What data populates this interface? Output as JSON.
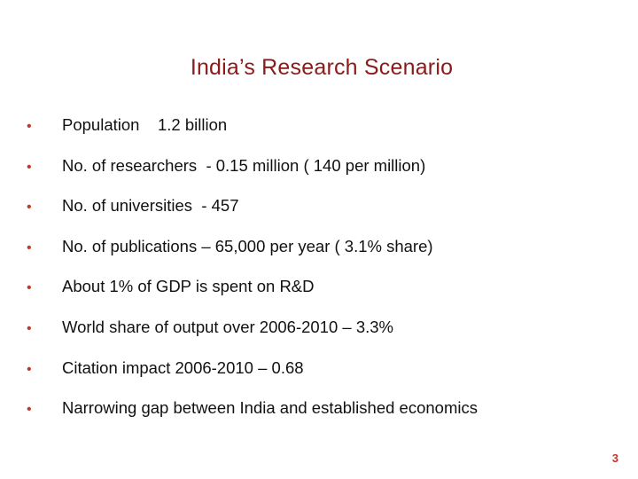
{
  "slide": {
    "title": "India’s Research Scenario",
    "bullets": [
      "Population    1.2 billion",
      "No. of researchers  - 0.15 million ( 140 per million)",
      "No. of universities  - 457",
      "No. of publications – 65,000 per year ( 3.1% share)",
      "About 1% of GDP is spent on R&D",
      "World share of output over 2006-2010 – 3.3%",
      "Citation impact 2006-2010 – 0.68",
      "Narrowing gap between India and established economics"
    ],
    "bullet_glyph": "•",
    "page_number": "3"
  },
  "colors": {
    "title": "#8b1a1a",
    "bullet": "#c0392b",
    "text": "#111111",
    "page_number": "#c0392b"
  }
}
